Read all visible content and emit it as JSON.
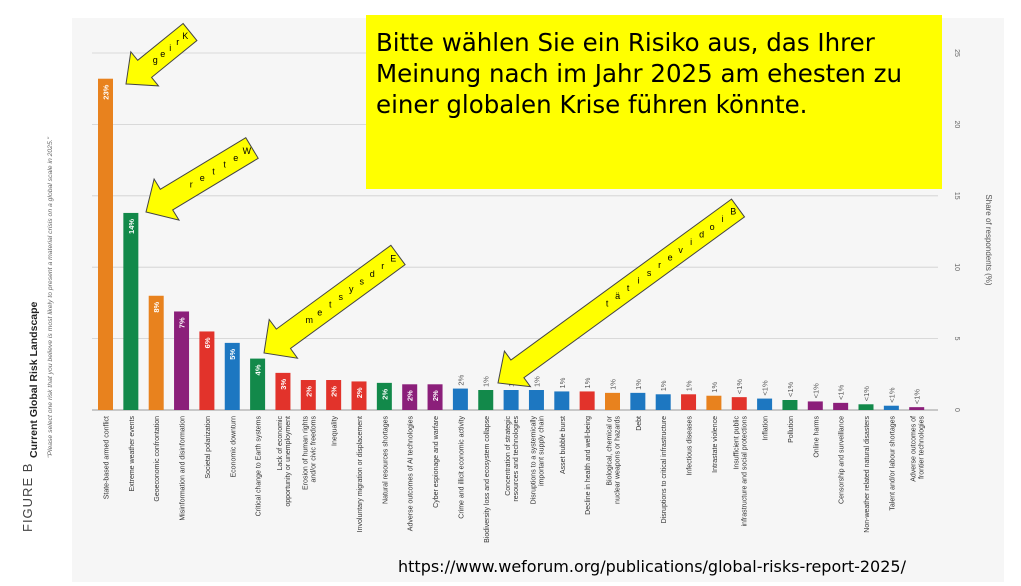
{
  "figure": {
    "label": "FIGURE B",
    "title": "Current Global Risk Landscape",
    "subtitle": "\"Please select one risk that you believe is most likely to present a material crisis on a global scale in 2025.\""
  },
  "callout": {
    "text": "Bitte wählen Sie ein Risiko aus, das Ihrer Meinung nach im Jahr 2025 am ehesten zu einer globalen Krise führen könnte."
  },
  "source": "https://www.weforum.org/publications/global-risks-report-2025/",
  "annotations": [
    {
      "text": "Krieg"
    },
    {
      "text": "Wetter"
    },
    {
      "text": "Erdsystem"
    },
    {
      "text": "Biodiversität"
    }
  ],
  "chart_data": {
    "type": "bar",
    "ylabel": "Share of respondents (%)",
    "ylim": [
      0,
      25
    ],
    "yticks": [
      0,
      5,
      10,
      15,
      20,
      25
    ],
    "grid": true,
    "categories": [
      "State-based armed conflict",
      "Extreme weather events",
      "Geoeconomic confrontation",
      "Misinformation and disinformation",
      "Societal polarization",
      "Economic downturn",
      "Critical change to Earth systems",
      "Lack of economic opportunity or unemployment",
      "Erosion of human rights and/or civic freedoms",
      "Inequality",
      "Involuntary migration or displacement",
      "Natural resources shortages",
      "Adverse outcomes of AI technologies",
      "Cyber espionage and warfare",
      "Crime and illicit economic activity",
      "Biodiversity loss and ecosystem collapse",
      "Concentration of strategic resources and technologies",
      "Disruptions to a systemically important supply chain",
      "Asset bubble burst",
      "Decline in health and well-being",
      "Biological, chemical or nuclear weapons or hazards",
      "Debt",
      "Disruptions to critical infrastructure",
      "Infectious diseases",
      "Intrastate violence",
      "Insufficient public infrastructure and social protections",
      "Inflation",
      "Pollution",
      "Online harms",
      "Censorship and surveillance",
      "Non-weather related natural disasters",
      "Talent and/or labour shortages",
      "Adverse outcomes of frontier technologies"
    ],
    "values": [
      23.2,
      13.8,
      8.0,
      6.9,
      5.5,
      4.7,
      3.6,
      2.6,
      2.1,
      2.1,
      2.0,
      1.9,
      1.8,
      1.8,
      1.5,
      1.4,
      1.4,
      1.4,
      1.3,
      1.3,
      1.2,
      1.2,
      1.1,
      1.1,
      1.0,
      0.9,
      0.8,
      0.7,
      0.6,
      0.5,
      0.4,
      0.3,
      0.2
    ],
    "labels": [
      "23%",
      "14%",
      "8%",
      "7%",
      "6%",
      "5%",
      "4%",
      "3%",
      "2%",
      "2%",
      "2%",
      "2%",
      "2%",
      "2%",
      "2%",
      "1%",
      "1%",
      "1%",
      "1%",
      "1%",
      "1%",
      "1%",
      "1%",
      "1%",
      "1%",
      "<1%",
      "<1%",
      "<1%",
      "<1%",
      "<1%",
      "<1%",
      "<1%",
      "<1%"
    ],
    "colors": [
      "#e8821e",
      "#12894a",
      "#e8821e",
      "#8b1f7a",
      "#e2332b",
      "#1d77c1",
      "#12894a",
      "#e2332b",
      "#e2332b",
      "#e2332b",
      "#e2332b",
      "#12894a",
      "#8b1f7a",
      "#8b1f7a",
      "#1d77c1",
      "#12894a",
      "#1d77c1",
      "#1d77c1",
      "#1d77c1",
      "#e2332b",
      "#e8821e",
      "#1d77c1",
      "#1d77c1",
      "#e2332b",
      "#e8821e",
      "#e2332b",
      "#1d77c1",
      "#12894a",
      "#8b1f7a",
      "#8b1f7a",
      "#12894a",
      "#1d77c1",
      "#8b1f7a"
    ]
  }
}
